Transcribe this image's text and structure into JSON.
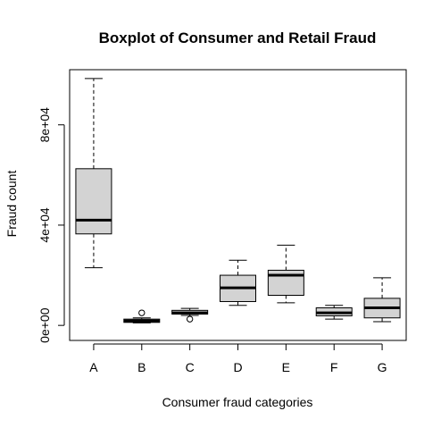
{
  "chart_data": {
    "type": "boxplot",
    "title": "Boxplot of Consumer and Retail Fraud",
    "xlabel": "Consumer fraud categories",
    "ylabel": "Fraud count",
    "ylim": [
      -6000,
      102000
    ],
    "yticks": [
      0,
      40000,
      80000
    ],
    "ytick_labels": [
      "0e+00",
      "4e+04",
      "8e+04"
    ],
    "grid": false,
    "box_fill": "#d3d3d3",
    "categories": [
      "A",
      "B",
      "C",
      "D",
      "E",
      "F",
      "G"
    ],
    "boxes": [
      {
        "label": "A",
        "whisker_low": 23000,
        "q1": 36500,
        "median": 42000,
        "q3": 62500,
        "whisker_high": 98500,
        "outliers": []
      },
      {
        "label": "B",
        "whisker_low": 1000,
        "q1": 1200,
        "median": 1800,
        "q3": 2500,
        "whisker_high": 3000,
        "outliers": [
          5000
        ]
      },
      {
        "label": "C",
        "whisker_low": 4000,
        "q1": 4500,
        "median": 5000,
        "q3": 6000,
        "whisker_high": 6800,
        "outliers": [
          2500
        ]
      },
      {
        "label": "D",
        "whisker_low": 8000,
        "q1": 9500,
        "median": 15000,
        "q3": 20000,
        "whisker_high": 26000,
        "outliers": []
      },
      {
        "label": "E",
        "whisker_low": 9000,
        "q1": 12000,
        "median": 20000,
        "q3": 22000,
        "whisker_high": 32000,
        "outliers": []
      },
      {
        "label": "F",
        "whisker_low": 2500,
        "q1": 3800,
        "median": 5000,
        "q3": 7000,
        "whisker_high": 8000,
        "outliers": []
      },
      {
        "label": "G",
        "whisker_low": 1500,
        "q1": 3000,
        "median": 7000,
        "q3": 10800,
        "whisker_high": 19000,
        "outliers": []
      }
    ]
  }
}
